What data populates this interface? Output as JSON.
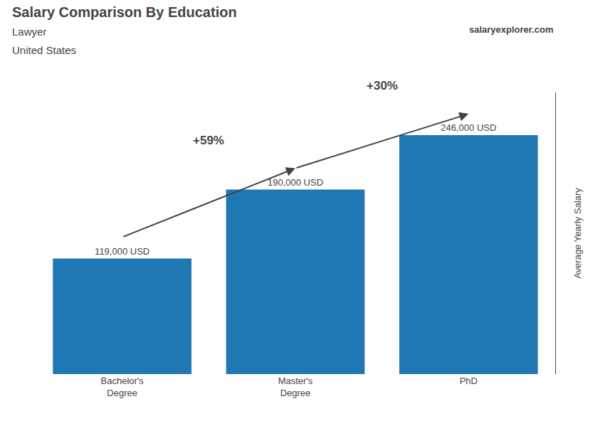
{
  "chart_data": {
    "type": "bar",
    "title": "Salary Comparison By Education",
    "subtitle": [
      "Lawyer",
      "United States"
    ],
    "website": "salaryexplorer.com",
    "ylabel": "Average Yearly Salary",
    "categories": [
      "Bachelor's\nDegree",
      "Master's\nDegree",
      "PhD"
    ],
    "values": [
      119000,
      190000,
      246000
    ],
    "value_labels": [
      "119,000 USD",
      "190,000 USD",
      "246,000 USD"
    ],
    "data_labels": true,
    "annotations": [
      {
        "text": "+59%",
        "from": "Bachelor's\nDegree",
        "to": "Master's\nDegree"
      },
      {
        "text": "+30%",
        "from": "Master's\nDegree",
        "to": "PhD"
      }
    ],
    "ylim": [
      0,
      290000
    ],
    "grid": false,
    "tick_labels": "x"
  }
}
